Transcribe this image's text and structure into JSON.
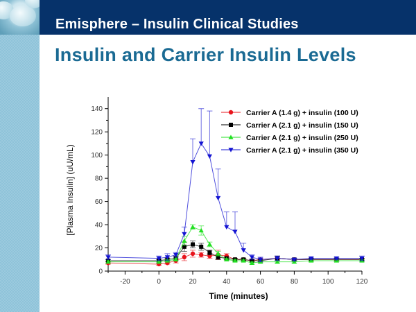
{
  "header": {
    "title": "Emisphere – Insulin Clinical Studies",
    "subtitle": "Insulin and Carrier Insulin Levels"
  },
  "colors": {
    "header_bg": "#06326a",
    "subtitle": "#1a6a93",
    "sidebar": "#8ec3d9"
  },
  "chart_data": {
    "type": "line",
    "title": "",
    "xlabel": "Time (minutes)",
    "ylabel": "[Plasma Insulin] (uU/mL)",
    "xlim": [
      -30,
      120
    ],
    "ylim": [
      0,
      150
    ],
    "xticks": [
      -20,
      0,
      20,
      40,
      60,
      80,
      100,
      120
    ],
    "xtick_labels": [
      "-20",
      "0",
      "20",
      "40",
      "60",
      "80",
      "100",
      "120"
    ],
    "yticks": [
      0,
      20,
      40,
      60,
      80,
      100,
      120,
      140
    ],
    "ytick_labels": [
      "0",
      "20",
      "40",
      "60",
      "80",
      "100",
      "120",
      "140"
    ],
    "grid": false,
    "legend_position": "top-right",
    "x": [
      -30,
      0,
      5,
      10,
      15,
      20,
      25,
      30,
      35,
      40,
      45,
      50,
      55,
      60,
      70,
      80,
      90,
      105,
      120
    ],
    "series": [
      {
        "name": "Carrier A (1.4 g) + insulin (100 U)",
        "color": "#e8141c",
        "marker": "circle",
        "values": [
          7,
          6,
          7,
          9,
          12,
          15,
          14,
          13,
          14,
          13,
          10,
          10,
          9,
          10,
          11,
          10,
          10,
          10,
          10
        ],
        "error": [
          1,
          1,
          1,
          2,
          3,
          3,
          2,
          2,
          4,
          2,
          1,
          1,
          1,
          1,
          1,
          1,
          1,
          1,
          1
        ]
      },
      {
        "name": "Carrier A (2.1 g) + insulin (150 U)",
        "color": "#000000",
        "marker": "square",
        "values": [
          9,
          9,
          10,
          11,
          21,
          23,
          21,
          16,
          12,
          11,
          10,
          10,
          9,
          9,
          11,
          10,
          10,
          10,
          10
        ],
        "error": [
          1,
          1,
          1,
          2,
          4,
          3,
          3,
          2,
          2,
          1,
          1,
          1,
          1,
          1,
          2,
          1,
          1,
          1,
          1
        ]
      },
      {
        "name": "Carrier A (2.1 g) + insulin (250 U)",
        "color": "#22e022",
        "marker": "triangle-up",
        "values": [
          8,
          8,
          9,
          10,
          26,
          38,
          35,
          23,
          15,
          10,
          9,
          9,
          7,
          8,
          8,
          8,
          9,
          9,
          9
        ],
        "error": [
          1,
          1,
          1,
          1,
          4,
          2,
          4,
          2,
          2,
          1,
          1,
          1,
          1,
          1,
          1,
          1,
          1,
          1,
          1
        ]
      },
      {
        "name": "Carrier A (2.1 g) + insulin (350 U)",
        "color": "#1414d2",
        "marker": "triangle-down",
        "values": [
          12,
          11,
          12,
          14,
          32,
          94,
          110,
          99,
          63,
          38,
          34,
          18,
          12,
          10,
          11,
          10,
          11,
          11,
          11
        ],
        "error": [
          2,
          2,
          3,
          2,
          6,
          20,
          30,
          39,
          25,
          13,
          17,
          6,
          2,
          2,
          2,
          1,
          1,
          1,
          2
        ]
      }
    ]
  }
}
